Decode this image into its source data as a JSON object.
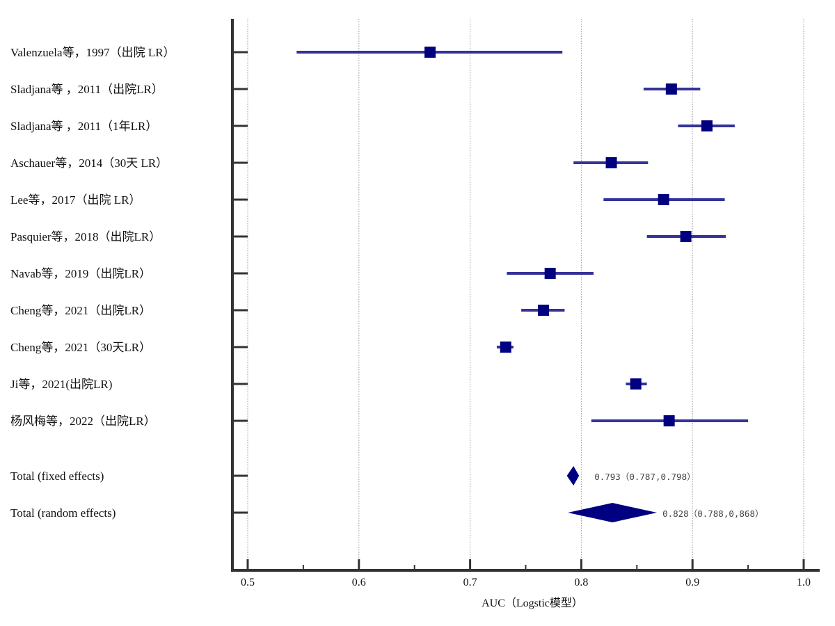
{
  "chart_data": {
    "type": "forest",
    "title": "",
    "xlabel": "AUC（Logstic模型）",
    "ylabel": "",
    "xlim": [
      0.5,
      1.0
    ],
    "xticks": [
      0.5,
      0.6,
      0.7,
      0.8,
      0.9,
      1.0
    ],
    "xtick_labels": [
      "0.5",
      "0.6",
      "0.7",
      "0.8",
      "0.9",
      "1.0"
    ],
    "minor_ticks": [
      0.55,
      0.65,
      0.75,
      0.85,
      0.95
    ],
    "grid": "vertical-dotted",
    "colors": {
      "marker": "#000080",
      "ci_line": "#333399",
      "axis": "#333333",
      "grid": "#999999"
    },
    "studies": [
      {
        "label": "Valenzuela等，1997（出院 LR）",
        "estimate": 0.664,
        "lower": 0.544,
        "upper": 0.783
      },
      {
        "label": "Sladjana等 ，2011（出院LR）",
        "estimate": 0.881,
        "lower": 0.856,
        "upper": 0.907
      },
      {
        "label": "Sladjana等 ，2011（1年LR）",
        "estimate": 0.913,
        "lower": 0.887,
        "upper": 0.938
      },
      {
        "label": "Aschauer等，2014（30天 LR）",
        "estimate": 0.827,
        "lower": 0.793,
        "upper": 0.86
      },
      {
        "label": "Lee等，2017（出院 LR）",
        "estimate": 0.874,
        "lower": 0.82,
        "upper": 0.929
      },
      {
        "label": "Pasquier等，2018（出院LR）",
        "estimate": 0.894,
        "lower": 0.859,
        "upper": 0.93
      },
      {
        "label": "Navab等，2019（出院LR）",
        "estimate": 0.772,
        "lower": 0.733,
        "upper": 0.811
      },
      {
        "label": "Cheng等，2021（出院LR）",
        "estimate": 0.766,
        "lower": 0.746,
        "upper": 0.785
      },
      {
        "label": "Cheng等，2021（30天LR）",
        "estimate": 0.732,
        "lower": 0.724,
        "upper": 0.739
      },
      {
        "label": "Ji等，2021(出院LR)",
        "estimate": 0.849,
        "lower": 0.84,
        "upper": 0.859
      },
      {
        "label": "杨风梅等，2022（出院LR）",
        "estimate": 0.879,
        "lower": 0.809,
        "upper": 0.95
      }
    ],
    "summaries": [
      {
        "label": "Total (fixed effects)",
        "estimate": 0.793,
        "lower": 0.787,
        "upper": 0.798,
        "text": "0.793（0.787,0.798）"
      },
      {
        "label": "Total (random effects)",
        "estimate": 0.828,
        "lower": 0.788,
        "upper": 0.868,
        "text": "0.828（0.788,0,868）"
      }
    ]
  }
}
